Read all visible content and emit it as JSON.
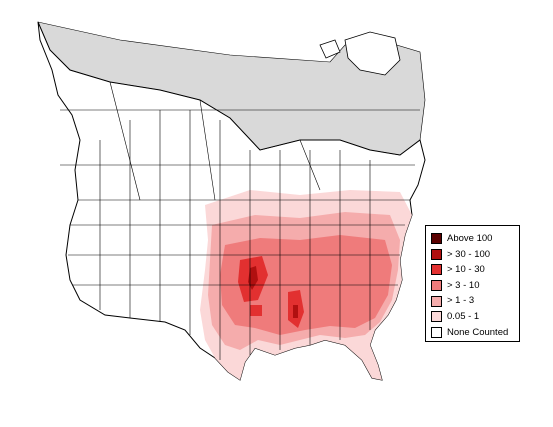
{
  "map": {
    "colors": {
      "land": "#ffffff",
      "outline": "#000000",
      "region_boundary": "#000000",
      "out_of_range": "#d9d9d9"
    }
  },
  "legend": {
    "items": [
      {
        "label": "Above 100",
        "color": "#5a0000"
      },
      {
        "label": "> 30 - 100",
        "color": "#b01010"
      },
      {
        "label": "> 10 - 30",
        "color": "#e23030"
      },
      {
        "label": "> 3 - 10",
        "color": "#ef7b7b"
      },
      {
        "label": "> 1 - 3",
        "color": "#f5acac"
      },
      {
        "label": "0.05 - 1",
        "color": "#fbd8d8"
      },
      {
        "label": "None Counted",
        "color": "#ffffff"
      }
    ]
  }
}
